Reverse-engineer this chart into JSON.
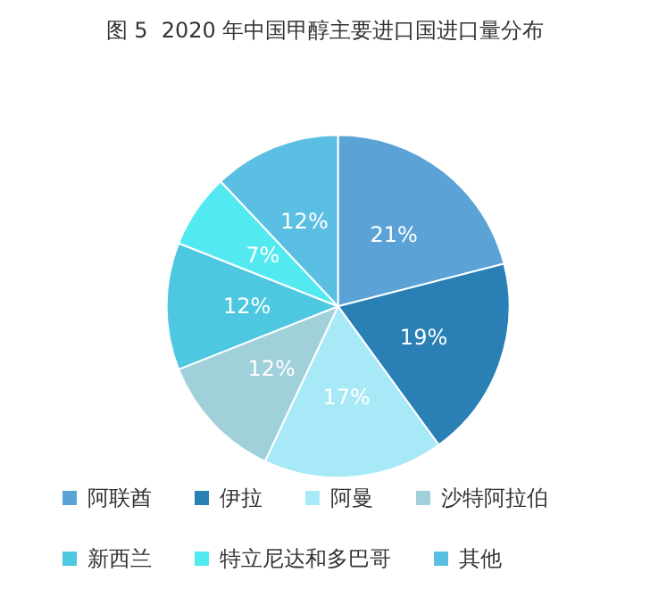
{
  "chart_data": {
    "type": "pie",
    "title": "图 5  2020 年中国甲醇主要进口国进口量分布",
    "categories": [
      "阿联酋",
      "伊拉",
      "阿曼",
      "沙特阿拉伯",
      "新西兰",
      "特立尼达和多巴哥",
      "其他"
    ],
    "values": [
      21,
      19,
      17,
      12,
      12,
      7,
      12
    ],
    "colors": [
      "#5ba3d6",
      "#2a7fb5",
      "#a8e9f7",
      "#a0d0da",
      "#4ec8e0",
      "#52eaf0",
      "#5bbfe3"
    ],
    "value_labels": [
      "21%",
      "19%",
      "17%",
      "12%",
      "12%",
      "7%",
      "12%"
    ],
    "legend": "bottom"
  }
}
